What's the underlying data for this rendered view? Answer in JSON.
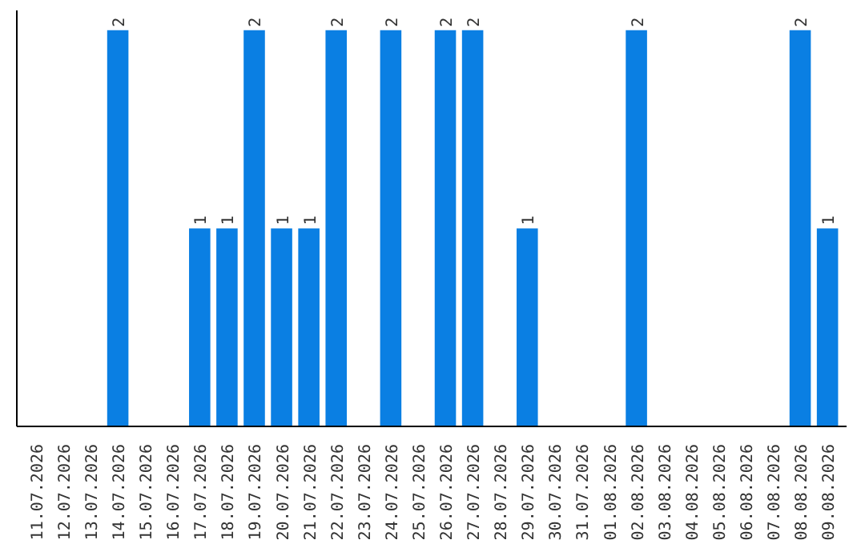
{
  "chart_data": {
    "type": "bar",
    "categories": [
      "11.07.2026",
      "12.07.2026",
      "13.07.2026",
      "14.07.2026",
      "15.07.2026",
      "16.07.2026",
      "17.07.2026",
      "18.07.2026",
      "19.07.2026",
      "20.07.2026",
      "21.07.2026",
      "22.07.2026",
      "23.07.2026",
      "24.07.2026",
      "25.07.2026",
      "26.07.2026",
      "27.07.2026",
      "28.07.2026",
      "29.07.2026",
      "30.07.2026",
      "31.07.2026",
      "01.08.2026",
      "02.08.2026",
      "03.08.2026",
      "04.08.2026",
      "05.08.2026",
      "06.08.2026",
      "07.08.2026",
      "08.08.2026",
      "09.08.2026"
    ],
    "values": [
      0,
      0,
      0,
      2,
      0,
      0,
      1,
      1,
      2,
      1,
      1,
      2,
      0,
      2,
      0,
      2,
      2,
      0,
      1,
      0,
      0,
      0,
      2,
      0,
      0,
      0,
      0,
      0,
      2,
      1
    ],
    "value_labels": [
      null,
      null,
      null,
      "2",
      null,
      null,
      "1",
      "1",
      "2",
      "1",
      "1",
      "2",
      null,
      "2",
      null,
      "2",
      "2",
      null,
      "1",
      null,
      null,
      null,
      "2",
      null,
      null,
      null,
      null,
      null,
      "2",
      "1"
    ],
    "color": "#0a7fe3",
    "ylim": [
      0,
      2.1
    ],
    "tick_labels": "x",
    "grid": false
  }
}
